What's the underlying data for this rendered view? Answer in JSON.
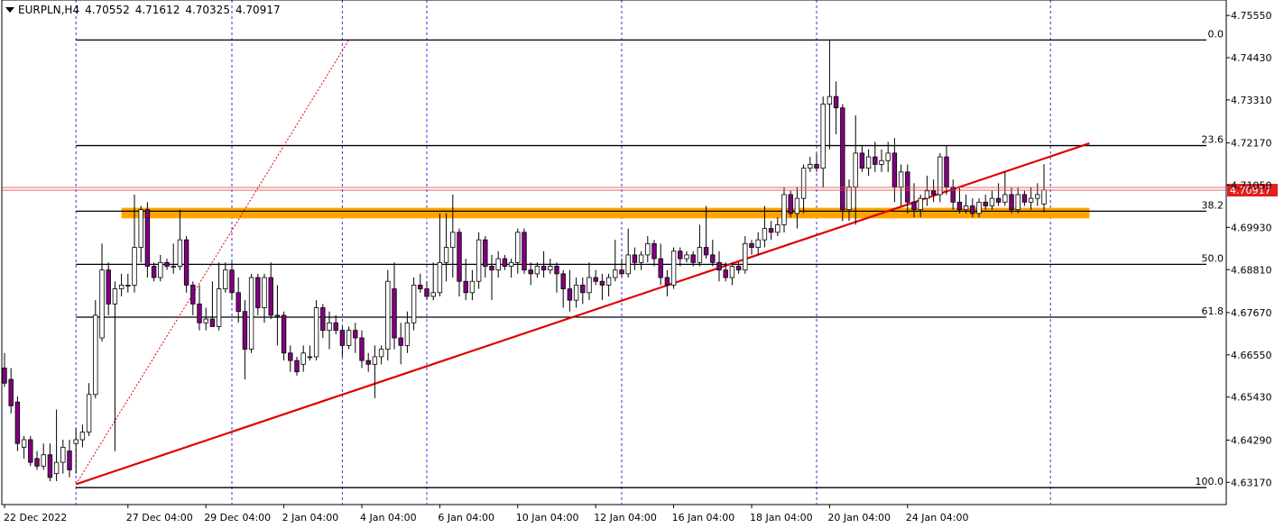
{
  "header": {
    "symbol": "EURPLN,H4",
    "open": "4.70552",
    "high": "4.71612",
    "low": "4.70325",
    "close": "4.70917"
  },
  "colors": {
    "bear_fill": "#800080",
    "bull_fill": "#ffffff",
    "candle_outline": "#000000",
    "trendline": "#e00000",
    "fib_line": "#000000",
    "vline": "#4a2bd6",
    "zone": "#ffa500",
    "price_label_bg": "#e02020"
  },
  "chart_data": {
    "type": "candlestick",
    "title": "EURPLN,H4",
    "y_axis": {
      "min": 4.6258,
      "max": 4.7596,
      "ticks": [
        "4.75550",
        "4.74430",
        "4.73310",
        "4.72170",
        "4.71050",
        "4.69930",
        "4.68810",
        "4.67670",
        "4.66550",
        "4.65430",
        "4.64290",
        "4.63170"
      ]
    },
    "x_axis": {
      "bars": 163,
      "ticks": [
        {
          "label": "22 Dec 2022",
          "bar": 0
        },
        {
          "label": "27 Dec 04:00",
          "bar": 19
        },
        {
          "label": "29 Dec 04:00",
          "bar": 31
        },
        {
          "label": "2 Jan 04:00",
          "bar": 43
        },
        {
          "label": "4 Jan 04:00",
          "bar": 55
        },
        {
          "label": "6 Jan 04:00",
          "bar": 67
        },
        {
          "label": "10 Jan 04:00",
          "bar": 79
        },
        {
          "label": "12 Jan 04:00",
          "bar": 91
        },
        {
          "label": "16 Jan 04:00",
          "bar": 103
        },
        {
          "label": "18 Jan 04:00",
          "bar": 115
        },
        {
          "label": "20 Jan 04:00",
          "bar": 127
        },
        {
          "label": "24 Jan 04:00",
          "bar": 139
        }
      ]
    },
    "current_price": {
      "value": 4.70917,
      "label": "4.70917"
    },
    "fib_levels": [
      {
        "label": "0.0",
        "value": 4.749
      },
      {
        "label": "23.6",
        "value": 4.721
      },
      {
        "label": "38.2",
        "value": 4.7036
      },
      {
        "label": "50.0",
        "value": 4.6895
      },
      {
        "label": "61.8",
        "value": 4.6755
      },
      {
        "label": "100.0",
        "value": 4.6303
      }
    ],
    "support_zone": {
      "from": 4.7017,
      "to": 4.7045,
      "bar_start": 18,
      "bar_end": 167
    },
    "trendlines": [
      {
        "style": "solid",
        "from": {
          "bar": 11,
          "value": 4.6312
        },
        "to": {
          "bar": 167,
          "value": 4.7216
        }
      },
      {
        "style": "dotted",
        "from": {
          "bar": 11,
          "value": 4.6312
        },
        "to": {
          "bar": 53,
          "value": 4.749
        }
      }
    ],
    "period_separators": [
      11,
      35,
      52,
      65,
      95,
      125,
      161
    ],
    "candles": [
      {
        "o": 4.662,
        "h": 4.666,
        "l": 4.657,
        "c": 4.658
      },
      {
        "o": 4.659,
        "h": 4.662,
        "l": 4.65,
        "c": 4.652
      },
      {
        "o": 4.653,
        "h": 4.6545,
        "l": 4.64,
        "c": 4.642
      },
      {
        "o": 4.641,
        "h": 4.644,
        "l": 4.638,
        "c": 4.643
      },
      {
        "o": 4.643,
        "h": 4.644,
        "l": 4.636,
        "c": 4.637
      },
      {
        "o": 4.638,
        "h": 4.64,
        "l": 4.635,
        "c": 4.636
      },
      {
        "o": 4.636,
        "h": 4.642,
        "l": 4.635,
        "c": 4.639
      },
      {
        "o": 4.639,
        "h": 4.642,
        "l": 4.632,
        "c": 4.633
      },
      {
        "o": 4.634,
        "h": 4.651,
        "l": 4.632,
        "c": 4.637
      },
      {
        "o": 4.637,
        "h": 4.643,
        "l": 4.634,
        "c": 4.641
      },
      {
        "o": 4.64,
        "h": 4.643,
        "l": 4.633,
        "c": 4.635
      },
      {
        "o": 4.642,
        "h": 4.646,
        "l": 4.634,
        "c": 4.643
      },
      {
        "o": 4.643,
        "h": 4.647,
        "l": 4.641,
        "c": 4.645
      },
      {
        "o": 4.645,
        "h": 4.658,
        "l": 4.644,
        "c": 4.655
      },
      {
        "o": 4.655,
        "h": 4.68,
        "l": 4.654,
        "c": 4.676
      },
      {
        "o": 4.67,
        "h": 4.695,
        "l": 4.669,
        "c": 4.688
      },
      {
        "o": 4.688,
        "h": 4.69,
        "l": 4.676,
        "c": 4.679
      },
      {
        "o": 4.679,
        "h": 4.685,
        "l": 4.64,
        "c": 4.683
      },
      {
        "o": 4.683,
        "h": 4.687,
        "l": 4.681,
        "c": 4.684
      },
      {
        "o": 4.684,
        "h": 4.687,
        "l": 4.682,
        "c": 4.684
      },
      {
        "o": 4.684,
        "h": 4.708,
        "l": 4.682,
        "c": 4.694
      },
      {
        "o": 4.694,
        "h": 4.705,
        "l": 4.69,
        "c": 4.704
      },
      {
        "o": 4.704,
        "h": 4.706,
        "l": 4.686,
        "c": 4.689
      },
      {
        "o": 4.689,
        "h": 4.69,
        "l": 4.685,
        "c": 4.686
      },
      {
        "o": 4.686,
        "h": 4.692,
        "l": 4.685,
        "c": 4.69
      },
      {
        "o": 4.69,
        "h": 4.691,
        "l": 4.688,
        "c": 4.689
      },
      {
        "o": 4.689,
        "h": 4.695,
        "l": 4.687,
        "c": 4.689
      },
      {
        "o": 4.689,
        "h": 4.704,
        "l": 4.688,
        "c": 4.696
      },
      {
        "o": 4.696,
        "h": 4.697,
        "l": 4.682,
        "c": 4.684
      },
      {
        "o": 4.684,
        "h": 4.685,
        "l": 4.676,
        "c": 4.679
      },
      {
        "o": 4.679,
        "h": 4.684,
        "l": 4.672,
        "c": 4.674
      },
      {
        "o": 4.674,
        "h": 4.678,
        "l": 4.672,
        "c": 4.675
      },
      {
        "o": 4.675,
        "h": 4.685,
        "l": 4.673,
        "c": 4.673
      },
      {
        "o": 4.673,
        "h": 4.69,
        "l": 4.672,
        "c": 4.683
      },
      {
        "o": 4.683,
        "h": 4.69,
        "l": 4.682,
        "c": 4.688
      },
      {
        "o": 4.688,
        "h": 4.69,
        "l": 4.68,
        "c": 4.682
      },
      {
        "o": 4.682,
        "h": 4.686,
        "l": 4.674,
        "c": 4.677
      },
      {
        "o": 4.677,
        "h": 4.68,
        "l": 4.659,
        "c": 4.667
      },
      {
        "o": 4.667,
        "h": 4.687,
        "l": 4.666,
        "c": 4.686
      },
      {
        "o": 4.686,
        "h": 4.687,
        "l": 4.676,
        "c": 4.678
      },
      {
        "o": 4.678,
        "h": 4.687,
        "l": 4.674,
        "c": 4.686
      },
      {
        "o": 4.686,
        "h": 4.69,
        "l": 4.675,
        "c": 4.676
      },
      {
        "o": 4.676,
        "h": 4.684,
        "l": 4.668,
        "c": 4.676
      },
      {
        "o": 4.676,
        "h": 4.677,
        "l": 4.664,
        "c": 4.666
      },
      {
        "o": 4.666,
        "h": 4.668,
        "l": 4.661,
        "c": 4.664
      },
      {
        "o": 4.664,
        "h": 4.665,
        "l": 4.66,
        "c": 4.661
      },
      {
        "o": 4.663,
        "h": 4.668,
        "l": 4.661,
        "c": 4.666
      },
      {
        "o": 4.665,
        "h": 4.668,
        "l": 4.664,
        "c": 4.665
      },
      {
        "o": 4.665,
        "h": 4.68,
        "l": 4.664,
        "c": 4.678
      },
      {
        "o": 4.678,
        "h": 4.679,
        "l": 4.67,
        "c": 4.672
      },
      {
        "o": 4.672,
        "h": 4.677,
        "l": 4.667,
        "c": 4.674
      },
      {
        "o": 4.674,
        "h": 4.676,
        "l": 4.671,
        "c": 4.672
      },
      {
        "o": 4.672,
        "h": 4.673,
        "l": 4.665,
        "c": 4.668
      },
      {
        "o": 4.668,
        "h": 4.673,
        "l": 4.667,
        "c": 4.672
      },
      {
        "o": 4.672,
        "h": 4.674,
        "l": 4.666,
        "c": 4.67
      },
      {
        "o": 4.67,
        "h": 4.672,
        "l": 4.662,
        "c": 4.664
      },
      {
        "o": 4.664,
        "h": 4.666,
        "l": 4.661,
        "c": 4.663
      },
      {
        "o": 4.663,
        "h": 4.668,
        "l": 4.654,
        "c": 4.665
      },
      {
        "o": 4.665,
        "h": 4.668,
        "l": 4.663,
        "c": 4.667
      },
      {
        "o": 4.667,
        "h": 4.688,
        "l": 4.664,
        "c": 4.685
      },
      {
        "o": 4.683,
        "h": 4.69,
        "l": 4.667,
        "c": 4.67
      },
      {
        "o": 4.67,
        "h": 4.674,
        "l": 4.663,
        "c": 4.668
      },
      {
        "o": 4.668,
        "h": 4.677,
        "l": 4.666,
        "c": 4.674
      },
      {
        "o": 4.674,
        "h": 4.686,
        "l": 4.672,
        "c": 4.684
      },
      {
        "o": 4.684,
        "h": 4.687,
        "l": 4.682,
        "c": 4.683
      },
      {
        "o": 4.683,
        "h": 4.685,
        "l": 4.68,
        "c": 4.681
      },
      {
        "o": 4.681,
        "h": 4.69,
        "l": 4.68,
        "c": 4.682
      },
      {
        "o": 4.682,
        "h": 4.703,
        "l": 4.681,
        "c": 4.69
      },
      {
        "o": 4.69,
        "h": 4.703,
        "l": 4.685,
        "c": 4.694
      },
      {
        "o": 4.694,
        "h": 4.708,
        "l": 4.686,
        "c": 4.698
      },
      {
        "o": 4.698,
        "h": 4.699,
        "l": 4.681,
        "c": 4.685
      },
      {
        "o": 4.685,
        "h": 4.691,
        "l": 4.68,
        "c": 4.682
      },
      {
        "o": 4.682,
        "h": 4.688,
        "l": 4.68,
        "c": 4.685
      },
      {
        "o": 4.685,
        "h": 4.698,
        "l": 4.683,
        "c": 4.696
      },
      {
        "o": 4.696,
        "h": 4.697,
        "l": 4.686,
        "c": 4.689
      },
      {
        "o": 4.689,
        "h": 4.692,
        "l": 4.68,
        "c": 4.688
      },
      {
        "o": 4.688,
        "h": 4.693,
        "l": 4.686,
        "c": 4.691
      },
      {
        "o": 4.691,
        "h": 4.692,
        "l": 4.688,
        "c": 4.689
      },
      {
        "o": 4.689,
        "h": 4.691,
        "l": 4.686,
        "c": 4.69
      },
      {
        "o": 4.69,
        "h": 4.699,
        "l": 4.687,
        "c": 4.698
      },
      {
        "o": 4.698,
        "h": 4.699,
        "l": 4.687,
        "c": 4.688
      },
      {
        "o": 4.688,
        "h": 4.69,
        "l": 4.684,
        "c": 4.687
      },
      {
        "o": 4.687,
        "h": 4.69,
        "l": 4.686,
        "c": 4.689
      },
      {
        "o": 4.689,
        "h": 4.693,
        "l": 4.686,
        "c": 4.688
      },
      {
        "o": 4.688,
        "h": 4.691,
        "l": 4.687,
        "c": 4.689
      },
      {
        "o": 4.689,
        "h": 4.69,
        "l": 4.682,
        "c": 4.687
      },
      {
        "o": 4.687,
        "h": 4.688,
        "l": 4.678,
        "c": 4.683
      },
      {
        "o": 4.683,
        "h": 4.688,
        "l": 4.677,
        "c": 4.68
      },
      {
        "o": 4.68,
        "h": 4.686,
        "l": 4.678,
        "c": 4.684
      },
      {
        "o": 4.684,
        "h": 4.686,
        "l": 4.679,
        "c": 4.682
      },
      {
        "o": 4.682,
        "h": 4.69,
        "l": 4.68,
        "c": 4.686
      },
      {
        "o": 4.686,
        "h": 4.688,
        "l": 4.684,
        "c": 4.685
      },
      {
        "o": 4.685,
        "h": 4.687,
        "l": 4.68,
        "c": 4.684
      },
      {
        "o": 4.684,
        "h": 4.687,
        "l": 4.681,
        "c": 4.686
      },
      {
        "o": 4.686,
        "h": 4.696,
        "l": 4.685,
        "c": 4.688
      },
      {
        "o": 4.688,
        "h": 4.691,
        "l": 4.686,
        "c": 4.687
      },
      {
        "o": 4.687,
        "h": 4.699,
        "l": 4.686,
        "c": 4.692
      },
      {
        "o": 4.692,
        "h": 4.694,
        "l": 4.688,
        "c": 4.69
      },
      {
        "o": 4.69,
        "h": 4.693,
        "l": 4.688,
        "c": 4.692
      },
      {
        "o": 4.692,
        "h": 4.697,
        "l": 4.69,
        "c": 4.695
      },
      {
        "o": 4.695,
        "h": 4.696,
        "l": 4.689,
        "c": 4.691
      },
      {
        "o": 4.691,
        "h": 4.695,
        "l": 4.684,
        "c": 4.686
      },
      {
        "o": 4.686,
        "h": 4.688,
        "l": 4.681,
        "c": 4.684
      },
      {
        "o": 4.684,
        "h": 4.694,
        "l": 4.683,
        "c": 4.693
      },
      {
        "o": 4.693,
        "h": 4.694,
        "l": 4.689,
        "c": 4.691
      },
      {
        "o": 4.691,
        "h": 4.693,
        "l": 4.69,
        "c": 4.692
      },
      {
        "o": 4.692,
        "h": 4.693,
        "l": 4.689,
        "c": 4.69
      },
      {
        "o": 4.69,
        "h": 4.7,
        "l": 4.689,
        "c": 4.694
      },
      {
        "o": 4.694,
        "h": 4.705,
        "l": 4.691,
        "c": 4.692
      },
      {
        "o": 4.692,
        "h": 4.696,
        "l": 4.689,
        "c": 4.69
      },
      {
        "o": 4.69,
        "h": 4.693,
        "l": 4.685,
        "c": 4.688
      },
      {
        "o": 4.688,
        "h": 4.69,
        "l": 4.685,
        "c": 4.686
      },
      {
        "o": 4.686,
        "h": 4.69,
        "l": 4.684,
        "c": 4.689
      },
      {
        "o": 4.689,
        "h": 4.69,
        "l": 4.687,
        "c": 4.688
      },
      {
        "o": 4.688,
        "h": 4.697,
        "l": 4.687,
        "c": 4.695
      },
      {
        "o": 4.695,
        "h": 4.696,
        "l": 4.692,
        "c": 4.694
      },
      {
        "o": 4.694,
        "h": 4.698,
        "l": 4.692,
        "c": 4.696
      },
      {
        "o": 4.696,
        "h": 4.705,
        "l": 4.694,
        "c": 4.699
      },
      {
        "o": 4.699,
        "h": 4.701,
        "l": 4.696,
        "c": 4.698
      },
      {
        "o": 4.698,
        "h": 4.702,
        "l": 4.697,
        "c": 4.7
      },
      {
        "o": 4.7,
        "h": 4.71,
        "l": 4.698,
        "c": 4.708
      },
      {
        "o": 4.708,
        "h": 4.709,
        "l": 4.702,
        "c": 4.703
      },
      {
        "o": 4.703,
        "h": 4.71,
        "l": 4.699,
        "c": 4.707
      },
      {
        "o": 4.707,
        "h": 4.716,
        "l": 4.703,
        "c": 4.715
      },
      {
        "o": 4.715,
        "h": 4.718,
        "l": 4.714,
        "c": 4.716
      },
      {
        "o": 4.716,
        "h": 4.719,
        "l": 4.714,
        "c": 4.715
      },
      {
        "o": 4.715,
        "h": 4.734,
        "l": 4.71,
        "c": 4.732
      },
      {
        "o": 4.732,
        "h": 4.749,
        "l": 4.72,
        "c": 4.734
      },
      {
        "o": 4.734,
        "h": 4.738,
        "l": 4.724,
        "c": 4.731
      },
      {
        "o": 4.731,
        "h": 4.732,
        "l": 4.701,
        "c": 4.704
      },
      {
        "o": 4.704,
        "h": 4.712,
        "l": 4.701,
        "c": 4.71
      },
      {
        "o": 4.71,
        "h": 4.729,
        "l": 4.7,
        "c": 4.719
      },
      {
        "o": 4.719,
        "h": 4.721,
        "l": 4.714,
        "c": 4.715
      },
      {
        "o": 4.715,
        "h": 4.72,
        "l": 4.713,
        "c": 4.718
      },
      {
        "o": 4.718,
        "h": 4.722,
        "l": 4.714,
        "c": 4.716
      },
      {
        "o": 4.716,
        "h": 4.72,
        "l": 4.714,
        "c": 4.717
      },
      {
        "o": 4.717,
        "h": 4.722,
        "l": 4.714,
        "c": 4.719
      },
      {
        "o": 4.719,
        "h": 4.723,
        "l": 4.706,
        "c": 4.71
      },
      {
        "o": 4.71,
        "h": 4.716,
        "l": 4.705,
        "c": 4.714
      },
      {
        "o": 4.714,
        "h": 4.716,
        "l": 4.703,
        "c": 4.706
      },
      {
        "o": 4.706,
        "h": 4.711,
        "l": 4.702,
        "c": 4.704
      },
      {
        "o": 4.704,
        "h": 4.708,
        "l": 4.702,
        "c": 4.707
      },
      {
        "o": 4.707,
        "h": 4.713,
        "l": 4.705,
        "c": 4.709
      },
      {
        "o": 4.709,
        "h": 4.712,
        "l": 4.706,
        "c": 4.708
      },
      {
        "o": 4.708,
        "h": 4.719,
        "l": 4.706,
        "c": 4.718
      },
      {
        "o": 4.718,
        "h": 4.721,
        "l": 4.708,
        "c": 4.71
      },
      {
        "o": 4.71,
        "h": 4.712,
        "l": 4.704,
        "c": 4.706
      },
      {
        "o": 4.706,
        "h": 4.71,
        "l": 4.703,
        "c": 4.704
      },
      {
        "o": 4.704,
        "h": 4.708,
        "l": 4.703,
        "c": 4.705
      },
      {
        "o": 4.705,
        "h": 4.707,
        "l": 4.702,
        "c": 4.703
      },
      {
        "o": 4.703,
        "h": 4.707,
        "l": 4.702,
        "c": 4.706
      },
      {
        "o": 4.706,
        "h": 4.708,
        "l": 4.704,
        "c": 4.705
      },
      {
        "o": 4.705,
        "h": 4.709,
        "l": 4.704,
        "c": 4.707
      },
      {
        "o": 4.707,
        "h": 4.711,
        "l": 4.705,
        "c": 4.706
      },
      {
        "o": 4.706,
        "h": 4.714,
        "l": 4.705,
        "c": 4.708
      },
      {
        "o": 4.708,
        "h": 4.71,
        "l": 4.703,
        "c": 4.704
      },
      {
        "o": 4.704,
        "h": 4.71,
        "l": 4.703,
        "c": 4.708
      },
      {
        "o": 4.708,
        "h": 4.709,
        "l": 4.705,
        "c": 4.706
      },
      {
        "o": 4.706,
        "h": 4.71,
        "l": 4.704,
        "c": 4.707
      },
      {
        "o": 4.707,
        "h": 4.711,
        "l": 4.705,
        "c": 4.708
      },
      {
        "o": 4.7055,
        "h": 4.7161,
        "l": 4.7033,
        "c": 4.7092
      }
    ]
  }
}
